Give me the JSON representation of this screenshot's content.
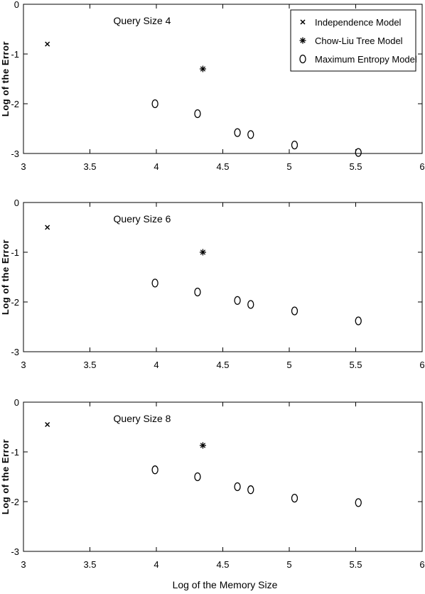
{
  "chart_data": [
    {
      "type": "scatter",
      "title": "Query Size 4",
      "xlabel": "",
      "ylabel": "Log of the Error",
      "xlim": [
        3,
        6
      ],
      "ylim": [
        -3,
        0
      ],
      "xticks": [
        "3",
        "3.5",
        "4",
        "4.5",
        "5",
        "5.5",
        "6"
      ],
      "yticks": [
        "0",
        "-1",
        "-2",
        "-3"
      ],
      "legend": {
        "placement": "top-right",
        "entries": [
          {
            "marker": "x",
            "label": "Independence Model"
          },
          {
            "marker": "*",
            "label": "Chow-Liu Tree Model"
          },
          {
            "marker": "o",
            "label": "Maximum Entropy Model"
          }
        ]
      },
      "series": [
        {
          "name": "Independence Model",
          "marker": "x",
          "points": [
            {
              "x": 3.18,
              "y": -0.8
            }
          ]
        },
        {
          "name": "Chow-Liu Tree Model",
          "marker": "*",
          "points": [
            {
              "x": 4.35,
              "y": -1.3
            }
          ]
        },
        {
          "name": "Maximum Entropy Model",
          "marker": "o",
          "points": [
            {
              "x": 3.99,
              "y": -2.0
            },
            {
              "x": 4.31,
              "y": -2.2
            },
            {
              "x": 4.61,
              "y": -2.58
            },
            {
              "x": 4.71,
              "y": -2.62
            },
            {
              "x": 5.04,
              "y": -2.83
            },
            {
              "x": 5.52,
              "y": -2.98
            }
          ]
        }
      ]
    },
    {
      "type": "scatter",
      "title": "Query Size 6",
      "xlabel": "",
      "ylabel": "Log of the Error",
      "xlim": [
        3,
        6
      ],
      "ylim": [
        -3,
        0
      ],
      "xticks": [
        "3",
        "3.5",
        "4",
        "4.5",
        "5",
        "5.5",
        "6"
      ],
      "yticks": [
        "0",
        "-1",
        "-2",
        "-3"
      ],
      "series": [
        {
          "name": "Independence Model",
          "marker": "x",
          "points": [
            {
              "x": 3.18,
              "y": -0.5
            }
          ]
        },
        {
          "name": "Chow-Liu Tree Model",
          "marker": "*",
          "points": [
            {
              "x": 4.35,
              "y": -1.0
            }
          ]
        },
        {
          "name": "Maximum Entropy Model",
          "marker": "o",
          "points": [
            {
              "x": 3.99,
              "y": -1.62
            },
            {
              "x": 4.31,
              "y": -1.8
            },
            {
              "x": 4.61,
              "y": -1.97
            },
            {
              "x": 4.71,
              "y": -2.05
            },
            {
              "x": 5.04,
              "y": -2.18
            },
            {
              "x": 5.52,
              "y": -2.38
            }
          ]
        }
      ]
    },
    {
      "type": "scatter",
      "title": "Query Size 8",
      "xlabel": "Log of the Memory Size",
      "ylabel": "Log of the Error",
      "xlim": [
        3,
        6
      ],
      "ylim": [
        -3,
        0
      ],
      "xticks": [
        "3",
        "3.5",
        "4",
        "4.5",
        "5",
        "5.5",
        "6"
      ],
      "yticks": [
        "0",
        "-1",
        "-2",
        "-3"
      ],
      "series": [
        {
          "name": "Independence Model",
          "marker": "x",
          "points": [
            {
              "x": 3.18,
              "y": -0.45
            }
          ]
        },
        {
          "name": "Chow-Liu Tree Model",
          "marker": "*",
          "points": [
            {
              "x": 4.35,
              "y": -0.87
            }
          ]
        },
        {
          "name": "Maximum Entropy Model",
          "marker": "o",
          "points": [
            {
              "x": 3.99,
              "y": -1.36
            },
            {
              "x": 4.31,
              "y": -1.5
            },
            {
              "x": 4.61,
              "y": -1.7
            },
            {
              "x": 4.71,
              "y": -1.76
            },
            {
              "x": 5.04,
              "y": -1.93
            },
            {
              "x": 5.52,
              "y": -2.02
            }
          ]
        }
      ]
    }
  ]
}
